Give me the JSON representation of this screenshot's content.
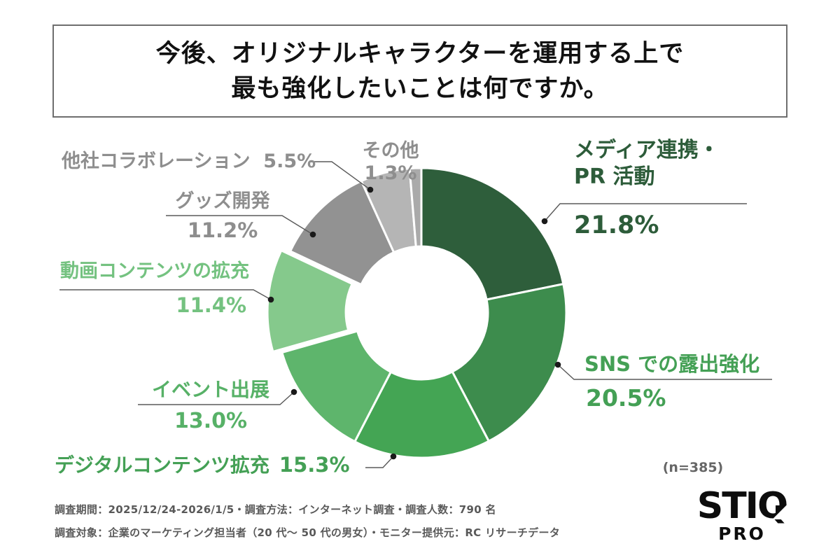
{
  "title": {
    "line1": "今後、オリジナルキャラクターを運用する上で",
    "line2": "最も強化したいことは何ですか。"
  },
  "chart_data": {
    "type": "pie",
    "subtype": "donut",
    "title": "今後、オリジナルキャラクターを運用する上で最も強化したいことは何ですか。",
    "n_label": "(n=385)",
    "start_angle_deg": 0,
    "clockwise": true,
    "exploded_segment": "動画コンテンツの拡充",
    "segments": [
      {
        "label": "メディア連携・PR 活動",
        "label_line1": "メディア連携・",
        "label_line2": "PR 活動",
        "value": 21.8,
        "pct_label": "21.8%",
        "color": "#2e5e3b",
        "label_color": "#2d5c3a"
      },
      {
        "label": "SNS での露出強化",
        "value": 20.5,
        "pct_label": "20.5%",
        "color": "#3d8c4d",
        "label_color": "#44a055"
      },
      {
        "label": "デジタルコンテンツ拡充",
        "value": 15.3,
        "pct_label": "15.3%",
        "color": "#44a554",
        "label_color": "#44a055"
      },
      {
        "label": "イベント出展",
        "value": 13.0,
        "pct_label": "13.0%",
        "color": "#5eb56c",
        "label_color": "#57b167"
      },
      {
        "label": "動画コンテンツの拡充",
        "value": 11.4,
        "pct_label": "11.4%",
        "color": "#85c98c",
        "label_color": "#74c280"
      },
      {
        "label": "グッズ開発",
        "value": 11.2,
        "pct_label": "11.2%",
        "color": "#929292",
        "label_color": "#8e8e8e"
      },
      {
        "label": "他社コラボレーション",
        "value": 5.5,
        "pct_label": "5.5%",
        "color": "#b5b5b5",
        "label_color": "#8e8e8e"
      },
      {
        "label": "その他",
        "value": 1.3,
        "pct_label": "1.3%",
        "color": "#aaaaaa",
        "label_color": "#8e8e8e"
      }
    ]
  },
  "footer": {
    "line1": "調査期間：2025/12/24-2026/1/5・調査方法：インターネット調査・調査人数：790 名",
    "line2": "調査対象：企業のマーケティング担当者（20 代～ 50 代の男女）・モニター提供元：RC リサーチデータ"
  },
  "logo": {
    "name": "STIQ",
    "sub": "PRO"
  }
}
